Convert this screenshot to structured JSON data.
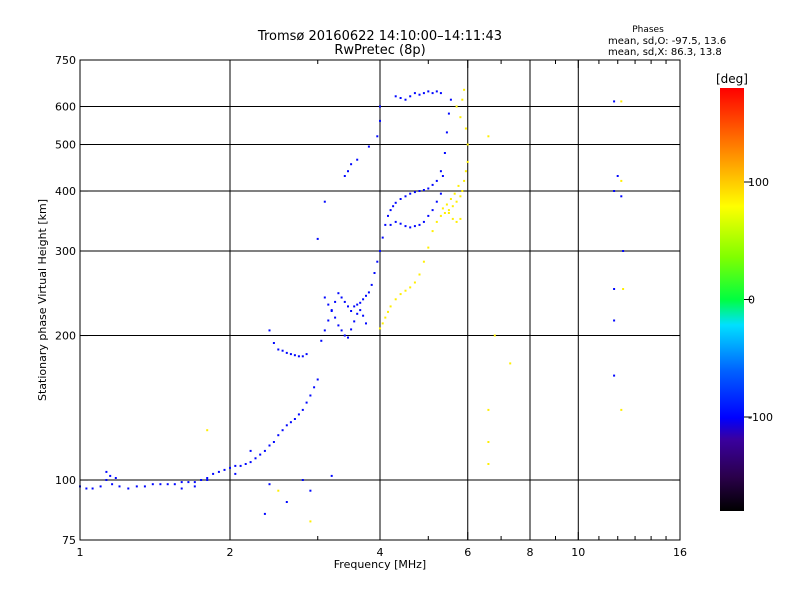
{
  "chart_data": {
    "type": "scatter",
    "title": "Tromsø 20160622 14:10:00–14:11:43",
    "subtitle": "RwPretec (8p)",
    "xlabel": "Frequency [MHz]",
    "ylabel": "Stationary phase Virtual Height [km]",
    "x_scale": "log",
    "y_scale": "log",
    "xlim": [
      1,
      16
    ],
    "ylim": [
      75,
      750
    ],
    "x_ticks": [
      1,
      2,
      4,
      6,
      8,
      10,
      16
    ],
    "x_tick_labels": [
      "1",
      "2",
      "4",
      "6",
      "8",
      "10",
      "16"
    ],
    "x_minor_ticks": [
      3,
      5,
      7,
      9,
      11,
      12,
      13,
      14,
      15
    ],
    "y_ticks": [
      75,
      100,
      200,
      300,
      400,
      500,
      600,
      750
    ],
    "y_tick_labels": [
      "75",
      "100",
      "200",
      "300",
      "400",
      "500",
      "600",
      "750"
    ],
    "grid": true,
    "legend_text": {
      "title": "Phases",
      "line1": "mean, sd,O: -97.5, 13.6",
      "line2": "mean, sd,X:  86.3, 13.8"
    },
    "colorbar": {
      "label": "[deg]",
      "range": [
        -180,
        180
      ],
      "ticks": [
        100,
        0,
        -100
      ],
      "tick_labels": [
        "100",
        "0",
        "-100"
      ]
    },
    "series": [
      {
        "mode": "O",
        "phase_deg": -97.5,
        "points": [
          [
            1.0,
            97
          ],
          [
            1.03,
            96
          ],
          [
            1.06,
            96
          ],
          [
            1.1,
            97
          ],
          [
            1.13,
            100
          ],
          [
            1.16,
            98
          ],
          [
            1.2,
            97
          ],
          [
            1.25,
            96
          ],
          [
            1.3,
            97
          ],
          [
            1.35,
            97
          ],
          [
            1.4,
            98
          ],
          [
            1.45,
            98
          ],
          [
            1.5,
            98
          ],
          [
            1.55,
            98
          ],
          [
            1.6,
            99
          ],
          [
            1.65,
            99
          ],
          [
            1.7,
            99
          ],
          [
            1.75,
            100
          ],
          [
            1.8,
            101
          ],
          [
            1.85,
            103
          ],
          [
            1.9,
            104
          ],
          [
            1.95,
            105
          ],
          [
            2.0,
            106
          ],
          [
            2.05,
            107
          ],
          [
            2.1,
            107
          ],
          [
            2.15,
            108
          ],
          [
            2.2,
            109
          ],
          [
            2.25,
            111
          ],
          [
            2.3,
            113
          ],
          [
            2.35,
            115
          ],
          [
            2.4,
            118
          ],
          [
            2.45,
            120
          ],
          [
            2.5,
            124
          ],
          [
            2.55,
            127
          ],
          [
            2.6,
            130
          ],
          [
            2.65,
            132
          ],
          [
            2.7,
            134
          ],
          [
            2.75,
            137
          ],
          [
            2.8,
            140
          ],
          [
            2.85,
            145
          ],
          [
            2.9,
            150
          ],
          [
            2.95,
            156
          ],
          [
            3.0,
            162
          ],
          [
            2.4,
            205
          ],
          [
            2.45,
            193
          ],
          [
            2.5,
            187
          ],
          [
            2.55,
            186
          ],
          [
            2.6,
            184
          ],
          [
            2.65,
            183
          ],
          [
            2.7,
            182
          ],
          [
            2.75,
            181
          ],
          [
            2.8,
            181
          ],
          [
            2.85,
            183
          ],
          [
            3.05,
            195
          ],
          [
            3.1,
            205
          ],
          [
            3.15,
            215
          ],
          [
            3.2,
            225
          ],
          [
            3.25,
            235
          ],
          [
            3.3,
            245
          ],
          [
            3.35,
            240
          ],
          [
            3.4,
            235
          ],
          [
            3.45,
            230
          ],
          [
            3.5,
            225
          ],
          [
            3.55,
            230
          ],
          [
            3.6,
            232
          ],
          [
            3.65,
            234
          ],
          [
            3.7,
            238
          ],
          [
            3.75,
            242
          ],
          [
            3.8,
            246
          ],
          [
            3.1,
            240
          ],
          [
            3.15,
            232
          ],
          [
            3.2,
            226
          ],
          [
            3.25,
            218
          ],
          [
            3.3,
            210
          ],
          [
            3.35,
            205
          ],
          [
            3.4,
            200
          ],
          [
            3.45,
            198
          ],
          [
            3.5,
            206
          ],
          [
            3.55,
            214
          ],
          [
            3.6,
            222
          ],
          [
            3.65,
            226
          ],
          [
            3.7,
            220
          ],
          [
            3.75,
            212
          ],
          [
            3.85,
            255
          ],
          [
            3.9,
            270
          ],
          [
            3.95,
            285
          ],
          [
            4.0,
            300
          ],
          [
            4.05,
            320
          ],
          [
            4.1,
            340
          ],
          [
            4.15,
            355
          ],
          [
            4.2,
            365
          ],
          [
            4.25,
            372
          ],
          [
            4.3,
            378
          ],
          [
            4.4,
            385
          ],
          [
            4.5,
            390
          ],
          [
            4.6,
            395
          ],
          [
            4.7,
            398
          ],
          [
            4.8,
            400
          ],
          [
            4.9,
            402
          ],
          [
            5.0,
            405
          ],
          [
            5.1,
            412
          ],
          [
            5.2,
            420
          ],
          [
            5.3,
            440
          ],
          [
            4.2,
            340
          ],
          [
            4.3,
            345
          ],
          [
            4.4,
            342
          ],
          [
            4.5,
            338
          ],
          [
            4.6,
            336
          ],
          [
            4.7,
            338
          ],
          [
            4.8,
            340
          ],
          [
            4.9,
            345
          ],
          [
            5.0,
            355
          ],
          [
            5.1,
            365
          ],
          [
            5.2,
            380
          ],
          [
            5.3,
            395
          ],
          [
            5.35,
            430
          ],
          [
            5.4,
            480
          ],
          [
            5.45,
            530
          ],
          [
            5.5,
            580
          ],
          [
            5.55,
            620
          ],
          [
            4.3,
            630
          ],
          [
            4.4,
            625
          ],
          [
            4.5,
            620
          ],
          [
            4.6,
            630
          ],
          [
            4.7,
            640
          ],
          [
            4.8,
            635
          ],
          [
            4.9,
            640
          ],
          [
            5.0,
            645
          ],
          [
            5.1,
            640
          ],
          [
            5.2,
            645
          ],
          [
            5.3,
            640
          ],
          [
            4.0,
            600
          ],
          [
            4.0,
            560
          ],
          [
            3.95,
            520
          ],
          [
            3.8,
            495
          ],
          [
            3.6,
            465
          ],
          [
            3.5,
            455
          ],
          [
            3.45,
            440
          ],
          [
            3.4,
            430
          ],
          [
            3.0,
            318
          ],
          [
            3.1,
            380
          ],
          [
            2.2,
            115
          ],
          [
            2.8,
            100
          ],
          [
            2.4,
            98
          ],
          [
            2.9,
            95
          ],
          [
            2.6,
            90
          ],
          [
            2.35,
            85
          ],
          [
            3.2,
            102
          ],
          [
            1.6,
            96
          ],
          [
            1.7,
            97
          ],
          [
            1.8,
            100
          ],
          [
            2.05,
            103
          ],
          [
            1.15,
            102
          ],
          [
            1.18,
            101
          ],
          [
            1.13,
            104
          ],
          [
            11.8,
            615
          ],
          [
            11.8,
            400
          ],
          [
            11.8,
            250
          ],
          [
            11.8,
            215
          ],
          [
            11.8,
            165
          ],
          [
            12.3,
            300
          ],
          [
            12.2,
            390
          ],
          [
            12.0,
            430
          ]
        ]
      },
      {
        "mode": "X",
        "phase_deg": 86.3,
        "points": [
          [
            4.0,
            207
          ],
          [
            4.05,
            212
          ],
          [
            4.1,
            218
          ],
          [
            4.15,
            224
          ],
          [
            4.2,
            230
          ],
          [
            4.3,
            238
          ],
          [
            4.4,
            244
          ],
          [
            4.5,
            248
          ],
          [
            4.6,
            252
          ],
          [
            4.7,
            258
          ],
          [
            4.8,
            268
          ],
          [
            4.9,
            285
          ],
          [
            5.0,
            305
          ],
          [
            5.1,
            330
          ],
          [
            5.2,
            345
          ],
          [
            5.3,
            355
          ],
          [
            5.4,
            360
          ],
          [
            5.5,
            365
          ],
          [
            5.6,
            372
          ],
          [
            5.7,
            380
          ],
          [
            5.8,
            390
          ],
          [
            5.85,
            400
          ],
          [
            5.9,
            420
          ],
          [
            5.95,
            440
          ],
          [
            6.0,
            460
          ],
          [
            6.0,
            500
          ],
          [
            5.95,
            540
          ],
          [
            5.8,
            570
          ],
          [
            5.7,
            600
          ],
          [
            5.9,
            650
          ],
          [
            5.85,
            620
          ],
          [
            5.75,
            410
          ],
          [
            5.65,
            395
          ],
          [
            5.55,
            385
          ],
          [
            5.45,
            375
          ],
          [
            5.35,
            368
          ],
          [
            5.5,
            360
          ],
          [
            5.6,
            350
          ],
          [
            5.7,
            345
          ],
          [
            5.8,
            350
          ],
          [
            6.6,
            520
          ],
          [
            6.8,
            200
          ],
          [
            12.2,
            615
          ],
          [
            12.2,
            420
          ],
          [
            12.3,
            250
          ],
          [
            12.2,
            140
          ],
          [
            6.6,
            140
          ],
          [
            6.6,
            120
          ],
          [
            6.6,
            108
          ],
          [
            7.3,
            175
          ],
          [
            1.8,
            127
          ],
          [
            2.9,
            82
          ],
          [
            2.5,
            95
          ]
        ]
      }
    ]
  }
}
